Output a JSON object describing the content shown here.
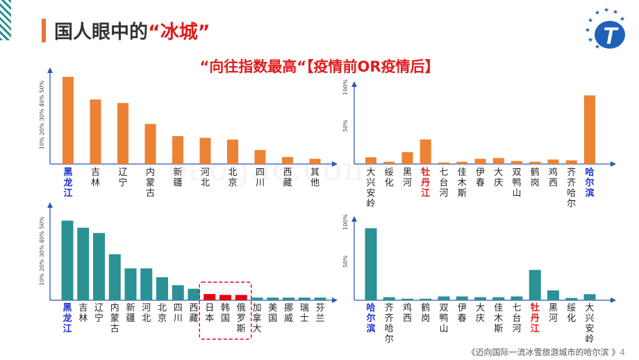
{
  "slide": {
    "title_prefix": "国人眼中的",
    "title_highlight": "“冰城”",
    "subtitle": "“向往指数最高“【疫情前OR疫情后】",
    "footer_text": "《迈向国际一流冰雪旅游城市的哈尔滨 》",
    "page_number": "4",
    "watermark": "baogao.com",
    "logo_letter": "T"
  },
  "chart_data": [
    {
      "type": "bar",
      "position": "top-left",
      "categories": [
        "黑龙江",
        "吉林",
        "辽宁",
        "内蒙古",
        "新疆",
        "河北",
        "北京",
        "四川",
        "西藏",
        "其他"
      ],
      "values": [
        50,
        37,
        35,
        23,
        16,
        15,
        14,
        8,
        4,
        3
      ],
      "ylim": [
        0,
        55
      ],
      "yticks": [
        10,
        20,
        30,
        40,
        50
      ],
      "ytick_labels": "10% 20% 30% 40% 50%",
      "bar_color": "#ec8233",
      "label_colors": {
        "黑龙江": "#1a2fd1"
      }
    },
    {
      "type": "bar",
      "position": "top-right",
      "categories": [
        "大兴安岭",
        "绥化",
        "黑河",
        "牡丹江",
        "七台河",
        "佳木斯",
        "伊春",
        "大庆",
        "双鸭山",
        "鹤岗",
        "鸡西",
        "齐齐哈尔",
        "哈尔滨"
      ],
      "values": [
        9,
        3,
        16,
        33,
        2,
        3,
        7,
        8,
        4,
        3,
        6,
        5,
        92
      ],
      "ylim": [
        0,
        110
      ],
      "yticks": [
        50,
        100
      ],
      "ytick_labels": [
        "50%",
        "100%"
      ],
      "bar_color": "#ec8233",
      "label_colors": {
        "牡丹江": "#e21b1b",
        "哈尔滨": "#1a2fd1"
      }
    },
    {
      "type": "bar",
      "position": "bottom-left",
      "categories": [
        "黑龙江",
        "吉林",
        "辽宁",
        "内蒙古",
        "新疆",
        "河北",
        "北京",
        "四川",
        "西藏",
        "日本",
        "韩国",
        "俄罗斯",
        "加拿大",
        "美国",
        "挪威",
        "瑞士",
        "芬兰"
      ],
      "values": [
        45,
        41,
        38,
        26,
        18,
        18,
        13,
        8.5,
        6.5,
        3.5,
        3,
        3,
        1.5,
        1.5,
        1.5,
        1.5,
        1.5
      ],
      "ylim": [
        0,
        55
      ],
      "yticks": [
        10,
        20,
        30,
        40,
        50
      ],
      "ytick_labels": "10% 20% 30% 40% 50%",
      "bar_color": "#2a9294",
      "highlight_color": "#e60012",
      "highlighted": [
        "日本",
        "韩国",
        "俄罗斯"
      ],
      "label_colors": {
        "黑龙江": "#1a2fd1"
      }
    },
    {
      "type": "bar",
      "position": "bottom-right",
      "categories": [
        "哈尔滨",
        "齐齐哈尔",
        "鸡西",
        "鹤岗",
        "双鸭山",
        "伊春",
        "大庆",
        "佳木斯",
        "七台河",
        "牡丹江",
        "黑河",
        "绥化",
        "大兴安岭"
      ],
      "values": [
        95,
        4,
        2,
        2,
        5,
        5,
        4,
        4,
        5,
        40,
        13,
        3,
        8
      ],
      "ylim": [
        0,
        110
      ],
      "yticks": [
        50,
        100
      ],
      "ytick_labels": [
        "50%",
        "100%"
      ],
      "bar_color": "#2a9294",
      "label_colors": {
        "哈尔滨": "#1a2fd1",
        "牡丹江": "#e21b1b"
      }
    }
  ]
}
